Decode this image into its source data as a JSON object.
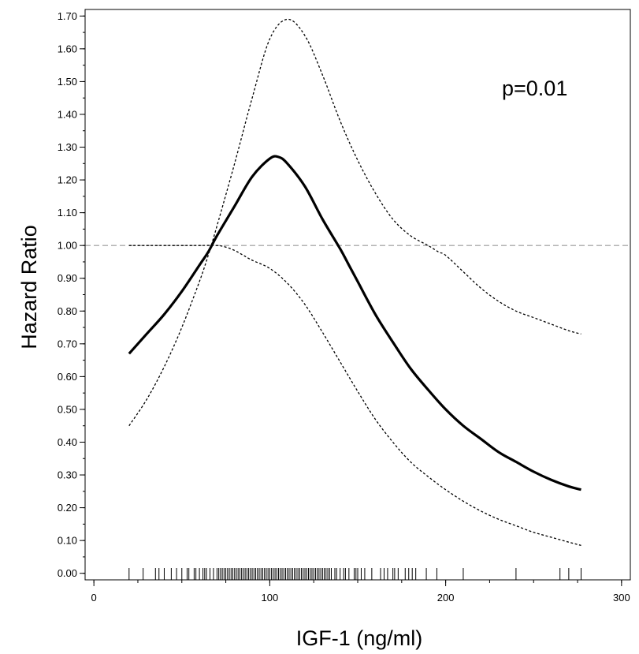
{
  "chart_data": {
    "type": "line",
    "xlabel": "IGF-1 (ng/ml)",
    "ylabel": "Hazard Ratio",
    "xlim": [
      -5,
      305
    ],
    "ylim": [
      -0.02,
      1.72
    ],
    "x_ticks": [
      {
        "value": 0,
        "label": "0"
      },
      {
        "value": 100,
        "label": "100"
      },
      {
        "value": 200,
        "label": "200"
      },
      {
        "value": 300,
        "label": "300"
      }
    ],
    "x_minor_step": 25,
    "y_ticks": [
      {
        "value": 0.0,
        "label": "0.00"
      },
      {
        "value": 0.1,
        "label": "0.10"
      },
      {
        "value": 0.2,
        "label": "0.20"
      },
      {
        "value": 0.3,
        "label": "0.30"
      },
      {
        "value": 0.4,
        "label": "0.40"
      },
      {
        "value": 0.5,
        "label": "0.50"
      },
      {
        "value": 0.6,
        "label": "0.60"
      },
      {
        "value": 0.7,
        "label": "0.70"
      },
      {
        "value": 0.8,
        "label": "0.80"
      },
      {
        "value": 0.9,
        "label": "0.90"
      },
      {
        "value": 1.0,
        "label": "1.00"
      },
      {
        "value": 1.1,
        "label": "1.10"
      },
      {
        "value": 1.2,
        "label": "1.20"
      },
      {
        "value": 1.3,
        "label": "1.30"
      },
      {
        "value": 1.4,
        "label": "1.40"
      },
      {
        "value": 1.5,
        "label": "1.50"
      },
      {
        "value": 1.6,
        "label": "1.60"
      },
      {
        "value": 1.7,
        "label": "1.70"
      }
    ],
    "y_minor_step": 0.05,
    "reference_line": {
      "y": 1.0,
      "style": "dashed",
      "color": "#999999"
    },
    "annotation": "p=0.01",
    "series": [
      {
        "style": "solid",
        "color": "#000000",
        "x": [
          20,
          30,
          40,
          50,
          60,
          65,
          70,
          80,
          90,
          100,
          105,
          110,
          120,
          130,
          140,
          145,
          150,
          160,
          170,
          180,
          190,
          200,
          210,
          220,
          230,
          240,
          250,
          260,
          270,
          277
        ],
        "y": [
          0.67,
          0.73,
          0.79,
          0.86,
          0.94,
          0.98,
          1.03,
          1.12,
          1.21,
          1.265,
          1.27,
          1.25,
          1.18,
          1.08,
          0.99,
          0.94,
          0.89,
          0.79,
          0.705,
          0.625,
          0.56,
          0.5,
          0.45,
          0.41,
          0.37,
          0.34,
          0.31,
          0.285,
          0.265,
          0.255
        ]
      },
      {
        "style": "dotted",
        "color": "#000000",
        "x": [
          20,
          30,
          40,
          50,
          60,
          65,
          70,
          80,
          90,
          100,
          110,
          120,
          130,
          140,
          150,
          160,
          170,
          180,
          190,
          196,
          200,
          210,
          220,
          230,
          240,
          250,
          260,
          270,
          277
        ],
        "y": [
          0.45,
          0.53,
          0.63,
          0.75,
          0.89,
          0.97,
          1.06,
          1.25,
          1.45,
          1.63,
          1.69,
          1.64,
          1.52,
          1.38,
          1.26,
          1.16,
          1.08,
          1.03,
          1.0,
          0.98,
          0.97,
          0.92,
          0.87,
          0.83,
          0.8,
          0.78,
          0.76,
          0.74,
          0.73
        ]
      },
      {
        "style": "dotted",
        "color": "#000000",
        "x": [
          20,
          30,
          40,
          50,
          60,
          70,
          75,
          80,
          85,
          90,
          100,
          110,
          120,
          130,
          140,
          150,
          160,
          170,
          180,
          190,
          200,
          210,
          220,
          230,
          240,
          250,
          260,
          270,
          277
        ],
        "y": [
          1.0,
          1.0,
          1.0,
          1.0,
          1.0,
          1.0,
          0.995,
          0.985,
          0.97,
          0.955,
          0.93,
          0.885,
          0.82,
          0.735,
          0.645,
          0.555,
          0.47,
          0.4,
          0.34,
          0.295,
          0.255,
          0.22,
          0.19,
          0.165,
          0.145,
          0.125,
          0.11,
          0.095,
          0.085
        ]
      }
    ],
    "rug": [
      20,
      28,
      35,
      37,
      40,
      44,
      47,
      50,
      53,
      54,
      57,
      58,
      60,
      62,
      63,
      64,
      66,
      68,
      70,
      71,
      72,
      73,
      74,
      75,
      76,
      77,
      78,
      79,
      80,
      81,
      82,
      83,
      84,
      85,
      86,
      87,
      88,
      89,
      90,
      91,
      92,
      93,
      94,
      95,
      96,
      97,
      98,
      99,
      100,
      101,
      102,
      103,
      104,
      105,
      106,
      107,
      108,
      109,
      110,
      111,
      112,
      113,
      114,
      115,
      116,
      117,
      118,
      119,
      120,
      121,
      122,
      123,
      124,
      125,
      126,
      127,
      128,
      129,
      130,
      131,
      132,
      133,
      134,
      135,
      137,
      138,
      140,
      142,
      143,
      145,
      148,
      149,
      150,
      152,
      154,
      158,
      163,
      165,
      167,
      170,
      171,
      173,
      177,
      179,
      181,
      183,
      189,
      195,
      210,
      240,
      265,
      270,
      277
    ]
  }
}
